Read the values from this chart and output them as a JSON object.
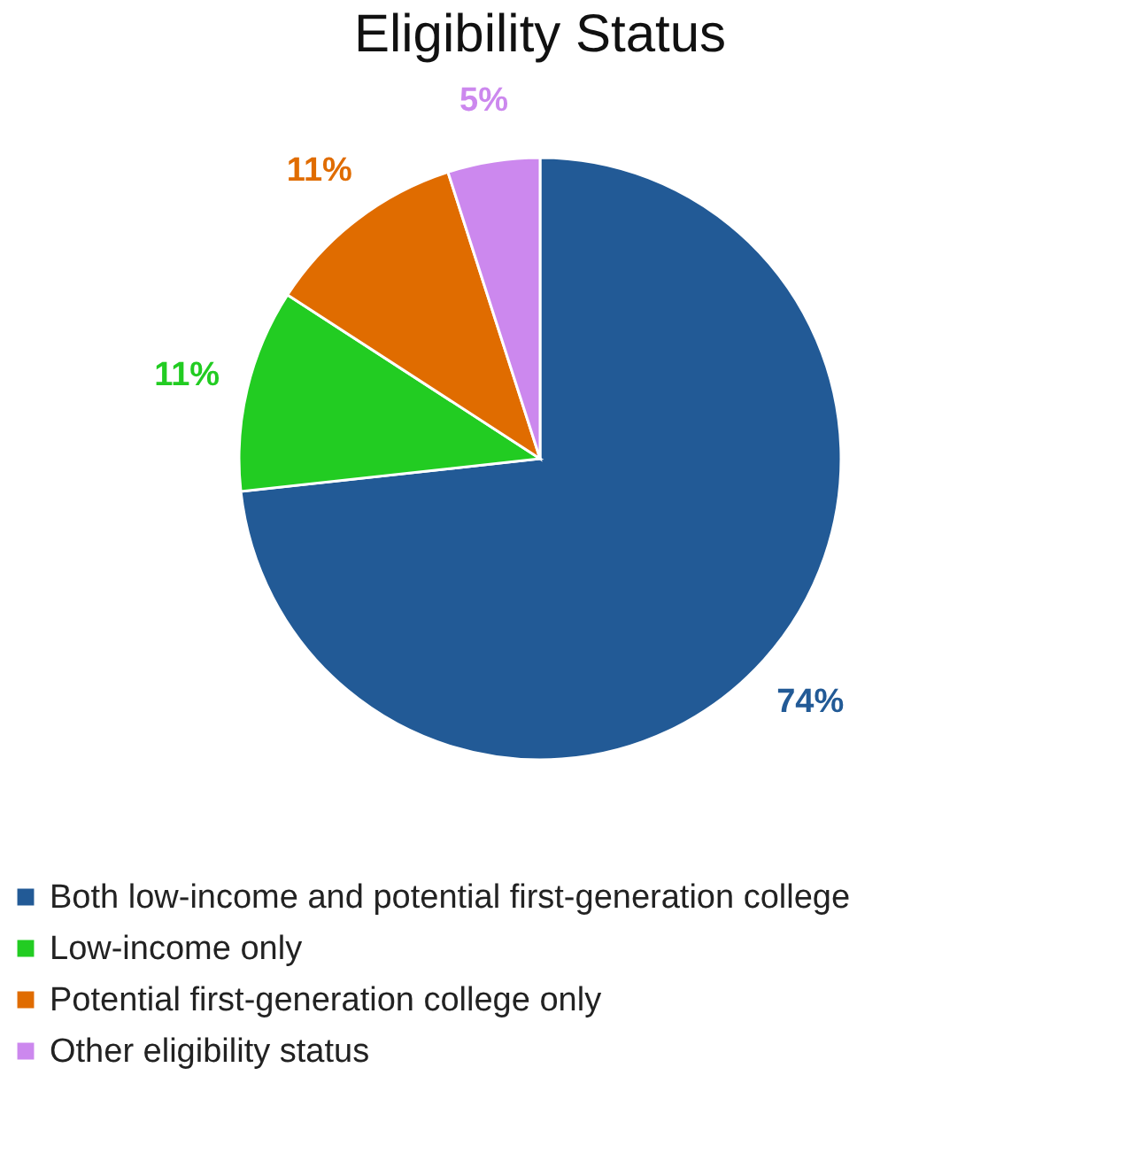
{
  "chart_data": {
    "type": "pie",
    "title": "Eligibility Status",
    "categories": [
      "Both low-income and potential first-generation college",
      "Low-income only",
      "Potential first-generation college only",
      "Other eligibility status"
    ],
    "values": [
      74,
      11,
      11,
      5
    ],
    "colors": [
      "#225a96",
      "#22cc22",
      "#e06c00",
      "#cc88ee"
    ],
    "value_labels": [
      "74%",
      "11%",
      "11%",
      "5%"
    ],
    "legend": "bottom"
  }
}
